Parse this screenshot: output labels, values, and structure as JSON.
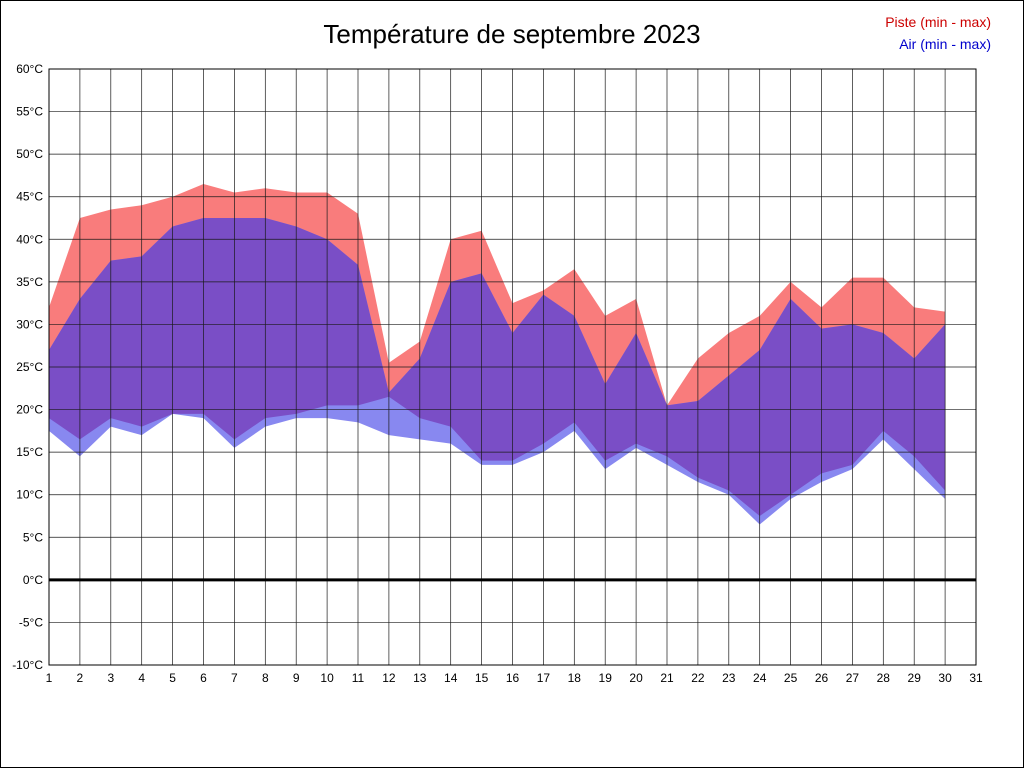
{
  "title": "Température de septembre 2023",
  "legend": {
    "piste_label": "Piste (min - max)",
    "air_label": "Air (min - max)"
  },
  "colors": {
    "piste_band": "#f97c7c",
    "air_band": "#8888f0",
    "overlap_band": "#7a4ec6",
    "piste_legend_text": "#cc0000",
    "air_legend_text": "#0000cc",
    "grid_line": "#1a1a1a",
    "zero_line": "#000000",
    "plot_border": "#000000"
  },
  "chart_data": {
    "type": "area",
    "title": "Température de septembre 2023",
    "xlabel": "",
    "ylabel": "",
    "xlim": [
      1,
      31
    ],
    "ylim": [
      -10,
      60
    ],
    "grid": true,
    "legend_position": "top-right",
    "zero_line_value": 0,
    "x_tick_values": [
      1,
      2,
      3,
      4,
      5,
      6,
      7,
      8,
      9,
      10,
      11,
      12,
      13,
      14,
      15,
      16,
      17,
      18,
      19,
      20,
      21,
      22,
      23,
      24,
      25,
      26,
      27,
      28,
      29,
      30,
      31
    ],
    "x_tick_labels": [
      "1",
      "2",
      "3",
      "4",
      "5",
      "6",
      "7",
      "8",
      "9",
      "10",
      "11",
      "12",
      "13",
      "14",
      "15",
      "16",
      "17",
      "18",
      "19",
      "20",
      "21",
      "22",
      "23",
      "24",
      "25",
      "26",
      "27",
      "28",
      "29",
      "30",
      "31"
    ],
    "y_tick_values": [
      60,
      55,
      50,
      45,
      40,
      35,
      30,
      25,
      20,
      15,
      10,
      5,
      0,
      -5,
      -10
    ],
    "y_tick_labels": [
      "60°C",
      "55°C",
      "50°C",
      "45°C",
      "40°C",
      "35°C",
      "30°C",
      "25°C",
      "20°C",
      "15°C",
      "10°C",
      "5°C",
      "0°C",
      "-5°C",
      "-10°C"
    ],
    "x": [
      1,
      2,
      3,
      4,
      5,
      6,
      7,
      8,
      9,
      10,
      11,
      12,
      13,
      14,
      15,
      16,
      17,
      18,
      19,
      20,
      21,
      22,
      23,
      24,
      25,
      26,
      27,
      28,
      29,
      30
    ],
    "series": [
      {
        "name": "piste_max",
        "values": [
          32,
          42.5,
          43.5,
          44,
          45,
          46.5,
          45.5,
          46,
          45.5,
          45.5,
          43,
          25.5,
          28,
          40,
          41,
          32.5,
          34,
          36.5,
          31,
          33,
          20.5,
          26,
          29,
          31,
          35,
          32,
          35.5,
          35.5,
          32,
          31.5
        ]
      },
      {
        "name": "piste_min",
        "values": [
          19,
          16.5,
          19,
          18,
          19.5,
          19.5,
          16.5,
          19,
          19.5,
          20.5,
          20.5,
          21.5,
          19,
          18,
          14,
          14,
          16,
          18.5,
          14,
          16,
          14.5,
          12,
          10.5,
          7.5,
          10,
          12.5,
          13.5,
          17.5,
          14.5,
          10.5
        ]
      },
      {
        "name": "air_max",
        "values": [
          27,
          33,
          37.5,
          38,
          41.5,
          42.5,
          42.5,
          42.5,
          41.5,
          40,
          37,
          22,
          26,
          35,
          36,
          29,
          33.5,
          31,
          23,
          29,
          20.5,
          21,
          24,
          27,
          33,
          29.5,
          30,
          29,
          26,
          30
        ]
      },
      {
        "name": "air_min",
        "values": [
          17.5,
          14.5,
          18,
          17,
          19.5,
          19,
          15.5,
          18,
          19,
          19,
          18.5,
          17,
          16.5,
          16,
          13.5,
          13.5,
          15,
          17.5,
          13,
          15.5,
          13.5,
          11.5,
          10,
          6.5,
          9.5,
          11.5,
          13,
          16.5,
          13,
          9.5
        ]
      }
    ]
  }
}
